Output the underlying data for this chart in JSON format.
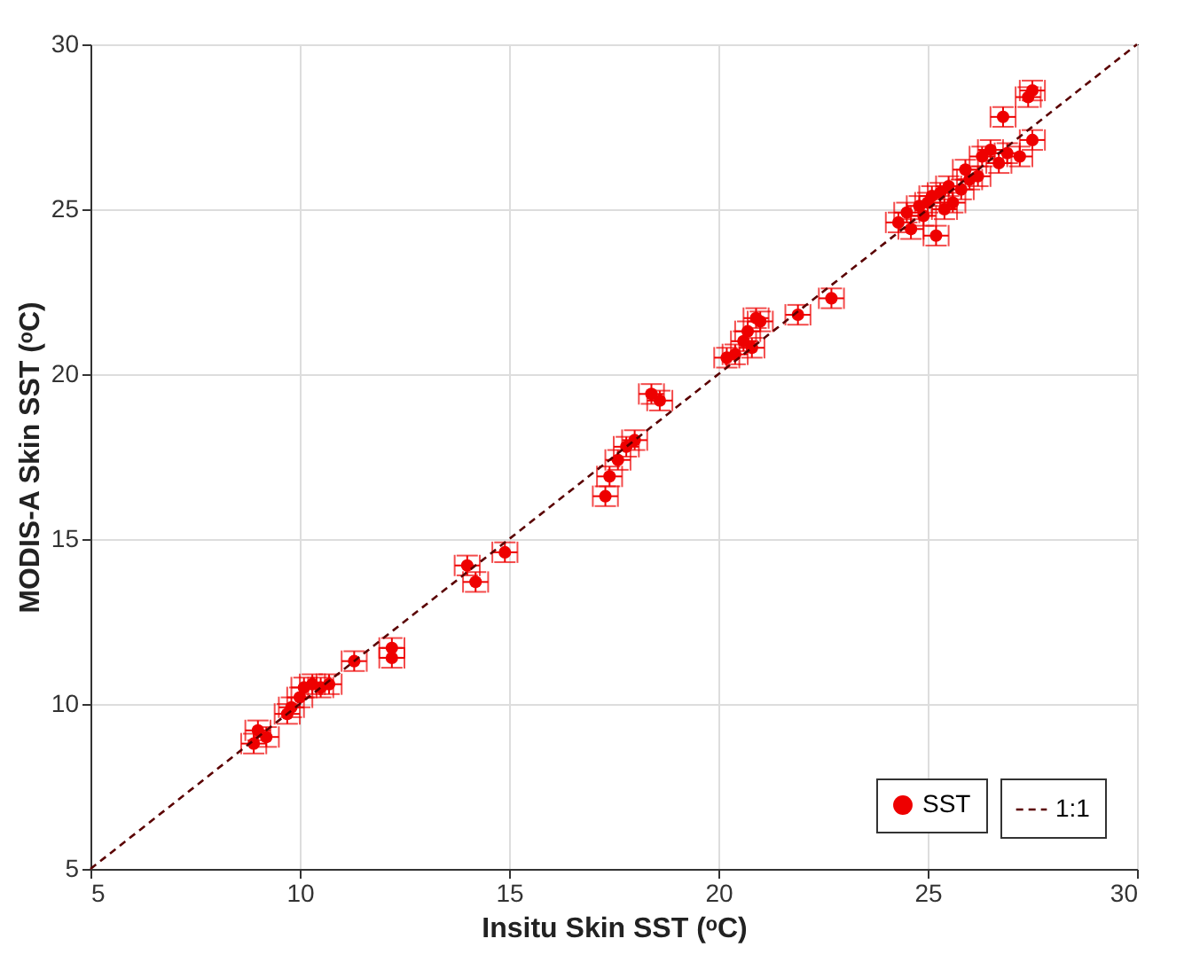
{
  "chart_data": {
    "type": "scatter",
    "xlabel": "Insitu Skin SST (ᵒC)",
    "ylabel": "MODIS-A Skin SST (ᵒC)",
    "xlim": [
      5,
      30
    ],
    "ylim": [
      5,
      30
    ],
    "xticks": [
      5,
      10,
      15,
      20,
      25,
      30
    ],
    "yticks": [
      5,
      10,
      15,
      20,
      25,
      30
    ],
    "grid": true,
    "legend": "bottom right",
    "series": [
      {
        "name": "SST",
        "color": "#ee0000",
        "marker": "circle",
        "x": [
          8.9,
          9.0,
          9.2,
          9.7,
          9.8,
          10.0,
          10.1,
          10.3,
          10.5,
          10.7,
          11.3,
          12.2,
          12.2,
          14.0,
          14.2,
          14.9,
          17.3,
          17.4,
          17.6,
          17.8,
          18.0,
          18.4,
          18.6,
          20.2,
          20.4,
          20.6,
          20.7,
          20.9,
          21.0,
          20.8,
          21.9,
          22.7,
          24.3,
          24.5,
          24.8,
          24.9,
          25.1,
          25.2,
          25.3,
          25.4,
          25.5,
          25.6,
          25.8,
          26.0,
          26.2,
          26.3,
          26.5,
          26.7,
          26.9,
          26.8,
          27.2,
          27.5,
          27.4,
          27.5,
          25.0,
          25.9,
          24.6
        ],
        "values": [
          8.8,
          9.2,
          9.0,
          9.7,
          9.9,
          10.2,
          10.5,
          10.6,
          10.5,
          10.6,
          11.3,
          11.4,
          11.7,
          14.2,
          13.7,
          14.6,
          16.3,
          16.9,
          17.4,
          17.8,
          18.0,
          19.4,
          19.2,
          20.5,
          20.6,
          21.0,
          21.3,
          21.7,
          21.6,
          20.8,
          21.8,
          22.3,
          24.6,
          24.9,
          25.1,
          24.8,
          25.4,
          24.2,
          25.5,
          25.0,
          25.7,
          25.2,
          25.6,
          25.9,
          26.0,
          26.6,
          26.8,
          26.4,
          26.7,
          27.8,
          26.6,
          27.1,
          28.4,
          28.6,
          25.2,
          26.2,
          24.4
        ],
        "errors": [
          0.3,
          0.3,
          0.3,
          0.3,
          0.3,
          0.3,
          0.3,
          0.3,
          0.3,
          0.3,
          0.3,
          0.3,
          0.3,
          0.3,
          0.3,
          0.3,
          0.3,
          0.3,
          0.3,
          0.3,
          0.3,
          0.3,
          0.3,
          0.3,
          0.3,
          0.3,
          0.3,
          0.3,
          0.3,
          0.3,
          0.3,
          0.3,
          0.3,
          0.3,
          0.3,
          0.3,
          0.3,
          0.3,
          0.3,
          0.3,
          0.3,
          0.3,
          0.3,
          0.3,
          0.3,
          0.3,
          0.3,
          0.3,
          0.3,
          0.3,
          0.3,
          0.3,
          0.3,
          0.3,
          0.3,
          0.3,
          0.3
        ],
        "xerrors": [
          0.3,
          0.3,
          0.3,
          0.3,
          0.3,
          0.3,
          0.3,
          0.3,
          0.3,
          0.3,
          0.3,
          0.3,
          0.3,
          0.3,
          0.3,
          0.3,
          0.3,
          0.3,
          0.3,
          0.3,
          0.3,
          0.3,
          0.3,
          0.3,
          0.3,
          0.3,
          0.3,
          0.3,
          0.3,
          0.3,
          0.3,
          0.3,
          0.3,
          0.3,
          0.3,
          0.3,
          0.3,
          0.3,
          0.3,
          0.3,
          0.3,
          0.3,
          0.3,
          0.3,
          0.3,
          0.3,
          0.3,
          0.3,
          0.3,
          0.3,
          0.3,
          0.3,
          0.3,
          0.3,
          0.3,
          0.3,
          0.3
        ]
      },
      {
        "name": "1:1",
        "color": "#5a0000",
        "type": "line",
        "line_style": "dashed",
        "x": [
          5,
          30
        ],
        "values": [
          5,
          30
        ]
      }
    ]
  }
}
